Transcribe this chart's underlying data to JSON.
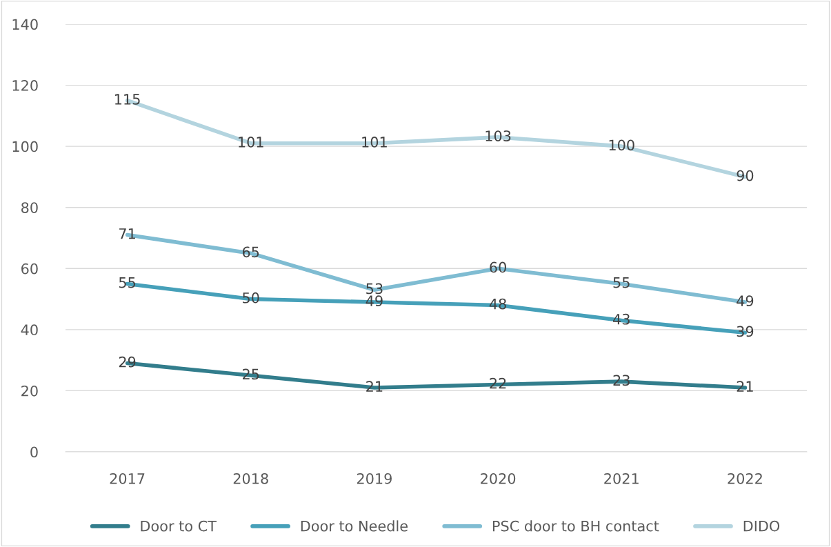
{
  "chart_data": {
    "type": "line",
    "categories": [
      "2017",
      "2018",
      "2019",
      "2020",
      "2021",
      "2022"
    ],
    "series": [
      {
        "name": "Door to CT",
        "color": "#327d8c",
        "values": [
          29,
          25,
          21,
          22,
          23,
          21
        ]
      },
      {
        "name": "Door to Needle",
        "color": "#46a0b9",
        "values": [
          55,
          50,
          49,
          48,
          43,
          39
        ]
      },
      {
        "name": "PSC door to BH contact",
        "color": "#7fbcd2",
        "values": [
          71,
          65,
          53,
          60,
          55,
          49
        ]
      },
      {
        "name": "DIDO",
        "color": "#b3d4df",
        "values": [
          115,
          101,
          101,
          103,
          100,
          90
        ]
      }
    ],
    "ylim": [
      0,
      140
    ],
    "yticks": [
      0,
      20,
      40,
      60,
      80,
      100,
      120,
      140
    ],
    "grid": "y",
    "legend": "bottom",
    "data_labels": true,
    "marker": "none",
    "line_style": "solid"
  }
}
